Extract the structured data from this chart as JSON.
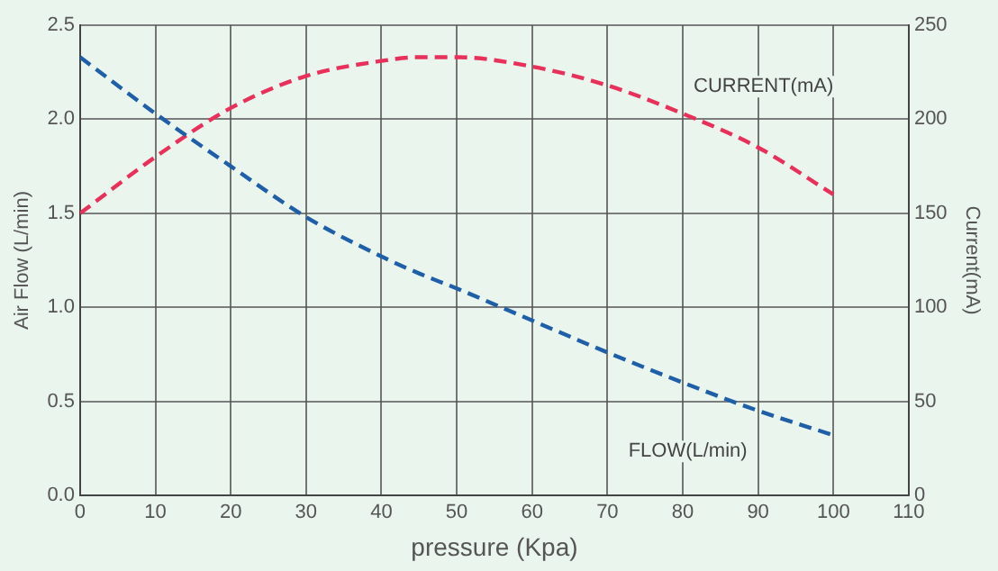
{
  "chart_data": {
    "type": "line",
    "xlabel": "pressure (Kpa)",
    "ylabel": "Air Flow (L/min)",
    "y2label": "Current(mA)",
    "x": [
      0,
      10,
      20,
      30,
      40,
      45,
      50,
      60,
      70,
      80,
      90,
      100
    ],
    "series": [
      {
        "name": "FLOW(L/min)",
        "color": "#1f5fa8",
        "values": [
          2.33,
          2.03,
          1.75,
          1.48,
          1.27,
          1.18,
          1.1,
          0.93,
          0.76,
          0.6,
          0.45,
          0.32
        ]
      },
      {
        "name": "CURRENT(mA)",
        "color": "#e8305a",
        "axis": "y2",
        "values": [
          150,
          180,
          206,
          223,
          231,
          233,
          233,
          228,
          218,
          203,
          185,
          160
        ]
      }
    ],
    "xlim": [
      0,
      110
    ],
    "xticks": [
      0,
      10,
      20,
      30,
      40,
      50,
      60,
      70,
      80,
      90,
      100,
      110
    ],
    "ylim": [
      0,
      2.5
    ],
    "yticks": [
      {
        "value": 0,
        "label": "0.0"
      },
      {
        "value": 0.5,
        "label": "0.5"
      },
      {
        "value": 1,
        "label": "1.0"
      },
      {
        "value": 1.5,
        "label": "1.5"
      },
      {
        "value": 2,
        "label": "2.0"
      },
      {
        "value": 2.5,
        "label": "2.5"
      }
    ],
    "y2lim": [
      0,
      250
    ],
    "y2ticks": [
      0,
      50,
      100,
      150,
      200,
      250
    ],
    "grid": true,
    "legend": false,
    "marker": "none",
    "line_style": "dashed"
  }
}
